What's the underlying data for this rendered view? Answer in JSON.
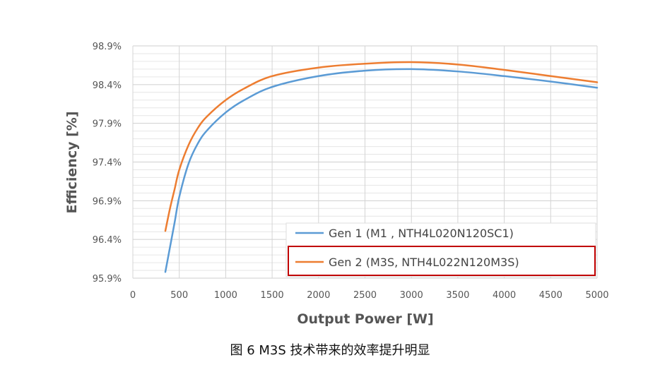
{
  "chart_data": {
    "type": "line",
    "xlabel": "Output Power [W]",
    "ylabel": "Efficiency [%]",
    "xlim": [
      0,
      5000
    ],
    "ylim": [
      95.9,
      98.9
    ],
    "x_ticks": [
      "0",
      "500",
      "1000",
      "1500",
      "2000",
      "2500",
      "3000",
      "3500",
      "4000",
      "4500",
      "5000"
    ],
    "y_ticks": [
      "95.9%",
      "96.4%",
      "96.9%",
      "97.4%",
      "97.9%",
      "98.4%",
      "98.9%"
    ],
    "grid": true,
    "legend_position": "bottom-right",
    "series": [
      {
        "name": "Gen 1 (M1 , NTH4L020N120SC1)",
        "color": "#5B9BD5",
        "x": [
          350,
          400,
          450,
          500,
          600,
          700,
          800,
          1000,
          1200,
          1500,
          2000,
          2500,
          3000,
          3500,
          4000,
          4500,
          5000
        ],
        "y": [
          95.98,
          96.3,
          96.62,
          96.95,
          97.38,
          97.64,
          97.81,
          98.04,
          98.2,
          98.37,
          98.51,
          98.58,
          98.6,
          98.57,
          98.51,
          98.44,
          98.36
        ]
      },
      {
        "name": "Gen 2 (M3S, NTH4L022N120M3S)",
        "color": "#ED7D31",
        "x": [
          350,
          400,
          450,
          500,
          600,
          700,
          800,
          1000,
          1200,
          1500,
          2000,
          2500,
          3000,
          3500,
          4000,
          4500,
          5000
        ],
        "y": [
          96.51,
          96.8,
          97.05,
          97.3,
          97.62,
          97.84,
          97.99,
          98.2,
          98.35,
          98.51,
          98.62,
          98.67,
          98.69,
          98.66,
          98.59,
          98.51,
          98.43
        ]
      }
    ],
    "highlighted_series": "Gen 2 (M3S, NTH4L022N120M3S)",
    "highlight_color": "#C00000"
  },
  "caption": "图 6    M3S 技术带来的效率提升明显"
}
